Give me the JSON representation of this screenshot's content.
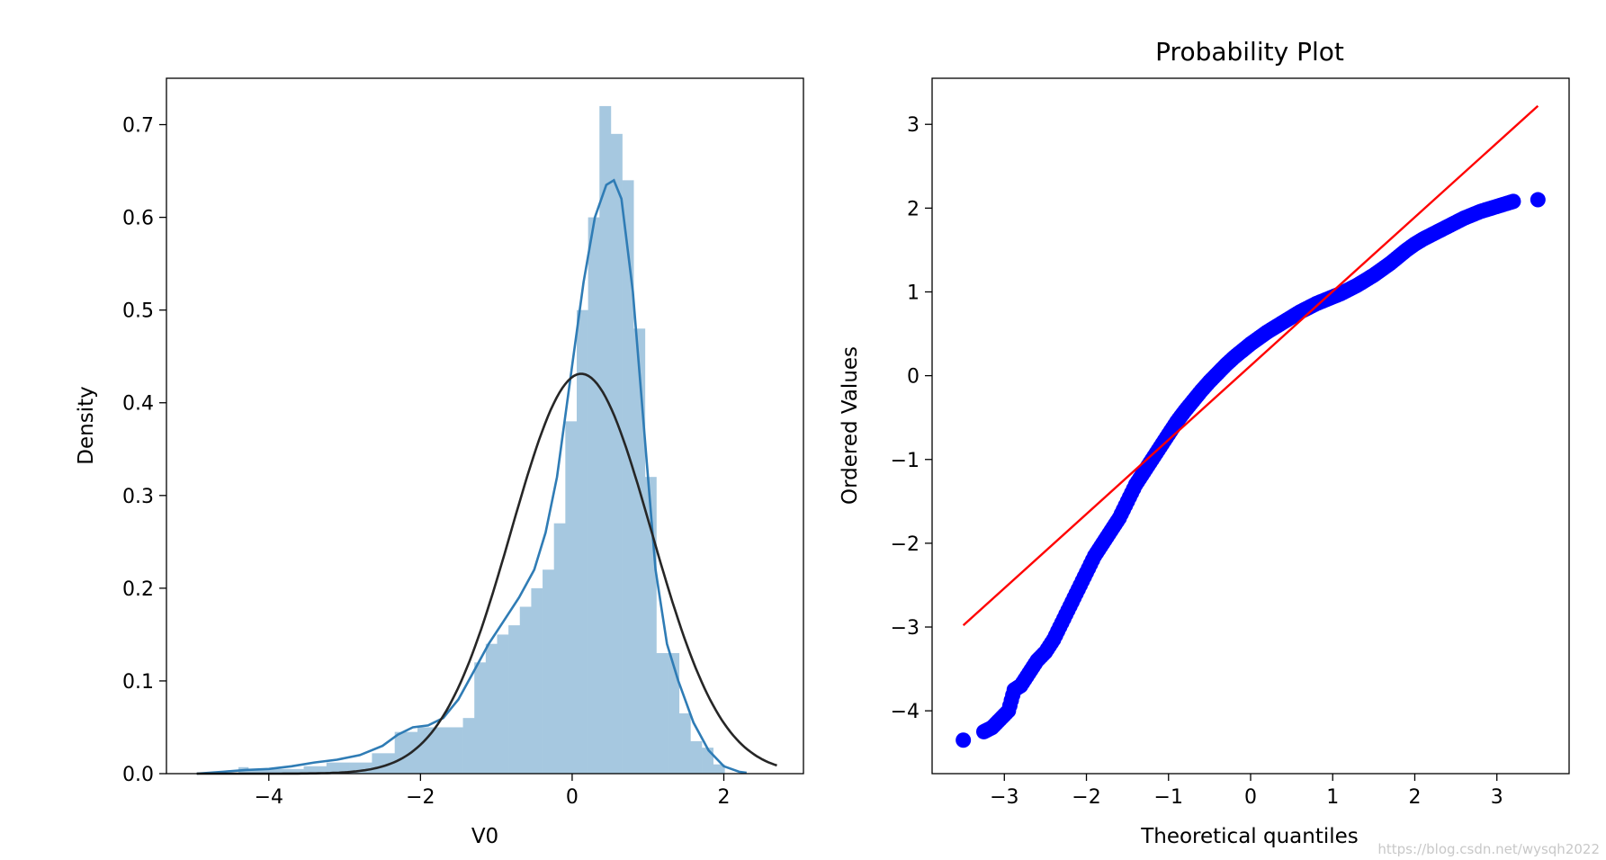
{
  "chart_data": [
    {
      "type": "histogram",
      "title": "",
      "xlabel": "V0",
      "ylabel": "Density",
      "xlim": [
        -5.35,
        3.05
      ],
      "ylim": [
        0,
        0.75
      ],
      "xticks": [
        -4,
        -2,
        0,
        2
      ],
      "yticks": [
        0.0,
        0.1,
        0.2,
        0.3,
        0.4,
        0.5,
        0.6,
        0.7
      ],
      "xtick_labels": [
        "−4",
        "−2",
        "0",
        "2"
      ],
      "ytick_labels": [
        "0.0",
        "0.1",
        "0.2",
        "0.3",
        "0.4",
        "0.5",
        "0.6",
        "0.7"
      ],
      "hist_color": "#a6c8e0",
      "kde_color": "#2f7cb5",
      "normal_color": "#262626",
      "histogram": {
        "bin_edges": [
          -4.4,
          -4.27,
          -4.14,
          -3.84,
          -3.54,
          -3.24,
          -2.94,
          -2.64,
          -2.34,
          -2.04,
          -1.74,
          -1.44,
          -1.29,
          -1.14,
          -0.99,
          -0.84,
          -0.69,
          -0.54,
          -0.39,
          -0.24,
          -0.09,
          0.06,
          0.21,
          0.36,
          0.51,
          0.66,
          0.81,
          0.96,
          1.11,
          1.26,
          1.41,
          1.56,
          1.71,
          1.86,
          2.01,
          2.16
        ],
        "densities": [
          0.007,
          0.005,
          0.005,
          0.005,
          0.008,
          0.012,
          0.012,
          0.022,
          0.045,
          0.05,
          0.05,
          0.06,
          0.12,
          0.14,
          0.15,
          0.16,
          0.18,
          0.2,
          0.22,
          0.27,
          0.38,
          0.5,
          0.6,
          0.72,
          0.69,
          0.64,
          0.48,
          0.32,
          0.13,
          0.13,
          0.065,
          0.035,
          0.028,
          0.01,
          0.0
        ]
      },
      "kde": {
        "x": [
          -4.95,
          -4.6,
          -4.3,
          -4.0,
          -3.7,
          -3.4,
          -3.1,
          -2.8,
          -2.5,
          -2.3,
          -2.1,
          -1.9,
          -1.7,
          -1.5,
          -1.3,
          -1.1,
          -0.9,
          -0.7,
          -0.5,
          -0.35,
          -0.2,
          0.0,
          0.15,
          0.3,
          0.45,
          0.55,
          0.65,
          0.8,
          0.95,
          1.1,
          1.25,
          1.4,
          1.6,
          1.8,
          2.0,
          2.2,
          2.3
        ],
        "y": [
          0.0,
          0.002,
          0.004,
          0.005,
          0.008,
          0.012,
          0.015,
          0.02,
          0.03,
          0.042,
          0.05,
          0.052,
          0.06,
          0.08,
          0.11,
          0.14,
          0.165,
          0.19,
          0.22,
          0.26,
          0.32,
          0.44,
          0.53,
          0.6,
          0.635,
          0.64,
          0.62,
          0.52,
          0.37,
          0.22,
          0.14,
          0.1,
          0.055,
          0.025,
          0.008,
          0.002,
          0.001
        ]
      },
      "normal_fit": {
        "mean": 0.12,
        "std": 0.925
      }
    },
    {
      "type": "scatter",
      "title": "Probability Plot",
      "xlabel": "Theoretical quantiles",
      "ylabel": "Ordered Values",
      "xlim": [
        -3.88,
        3.88
      ],
      "ylim": [
        -4.75,
        3.55
      ],
      "xticks": [
        -3,
        -2,
        -1,
        0,
        1,
        2,
        3
      ],
      "yticks": [
        -4,
        -3,
        -2,
        -1,
        0,
        1,
        2,
        3
      ],
      "xtick_labels": [
        "−3",
        "−2",
        "−1",
        "0",
        "1",
        "2",
        "3"
      ],
      "ytick_labels": [
        "−4",
        "−3",
        "−2",
        "−1",
        "0",
        "1",
        "2",
        "3"
      ],
      "point_color": "#0000ff",
      "line_color": "#ff0000",
      "points": {
        "x": [
          -3.5,
          -3.25,
          -3.15,
          -3.05,
          -2.95,
          -2.88,
          -2.8,
          -2.7,
          -2.6,
          -2.5,
          -2.4,
          -2.3,
          -2.2,
          -2.1,
          -2.0,
          -1.9,
          -1.8,
          -1.7,
          -1.6,
          -1.5,
          -1.4,
          -1.3,
          -1.2,
          -1.1,
          -1.0,
          -0.9,
          -0.8,
          -0.7,
          -0.6,
          -0.5,
          -0.4,
          -0.3,
          -0.2,
          -0.1,
          0.0,
          0.1,
          0.2,
          0.3,
          0.4,
          0.5,
          0.6,
          0.7,
          0.8,
          0.9,
          1.0,
          1.1,
          1.2,
          1.3,
          1.4,
          1.5,
          1.6,
          1.7,
          1.8,
          1.9,
          2.0,
          2.1,
          2.2,
          2.3,
          2.4,
          2.5,
          2.6,
          2.7,
          2.8,
          2.9,
          3.0,
          3.1,
          3.2,
          3.5
        ],
        "y": [
          -4.35,
          -4.25,
          -4.2,
          -4.1,
          -4.0,
          -3.75,
          -3.7,
          -3.55,
          -3.4,
          -3.3,
          -3.15,
          -2.95,
          -2.75,
          -2.55,
          -2.35,
          -2.15,
          -2.0,
          -1.85,
          -1.7,
          -1.5,
          -1.3,
          -1.15,
          -1.0,
          -0.85,
          -0.7,
          -0.55,
          -0.42,
          -0.3,
          -0.18,
          -0.07,
          0.03,
          0.13,
          0.22,
          0.3,
          0.38,
          0.45,
          0.52,
          0.58,
          0.64,
          0.7,
          0.76,
          0.81,
          0.86,
          0.9,
          0.94,
          0.98,
          1.03,
          1.08,
          1.14,
          1.2,
          1.27,
          1.34,
          1.42,
          1.5,
          1.57,
          1.63,
          1.68,
          1.73,
          1.78,
          1.83,
          1.88,
          1.92,
          1.96,
          1.99,
          2.02,
          2.05,
          2.08,
          2.1
        ]
      },
      "fit_line": {
        "x": [
          -3.5,
          3.5
        ],
        "y": [
          -2.98,
          3.22
        ]
      }
    }
  ],
  "watermark": "https://blog.csdn.net/wysqh2022"
}
